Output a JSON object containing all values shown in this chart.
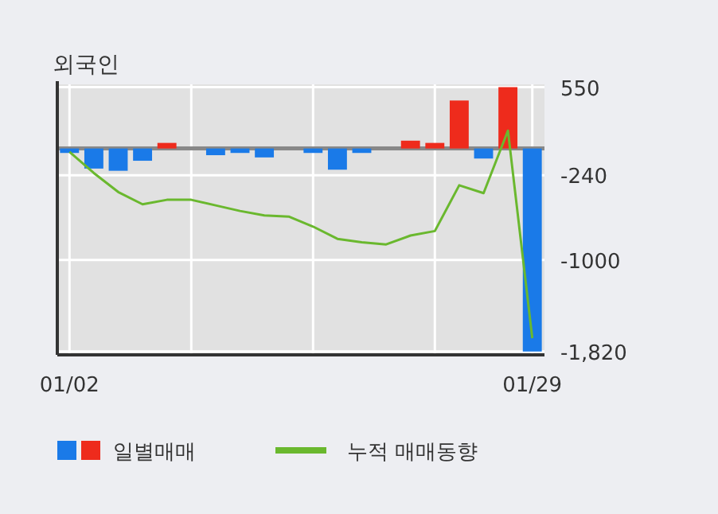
{
  "chart_data": {
    "type": "bar",
    "title": "외국인",
    "categories": [
      "01/02",
      null,
      null,
      null,
      null,
      null,
      null,
      null,
      null,
      null,
      null,
      null,
      null,
      null,
      null,
      null,
      null,
      null,
      null,
      "01/29"
    ],
    "series": [
      {
        "name": "일별매매",
        "colors": [
          "#1a7ae8",
          "#1a7ae8",
          "#1a7ae8",
          "#1a7ae8",
          "#ee2b1c",
          "#1a7ae8",
          "#1a7ae8",
          "#1a7ae8",
          "#1a7ae8",
          "#1a7ae8",
          "#1a7ae8",
          "#1a7ae8",
          "#1a7ae8",
          "#1a7ae8",
          "#ee2b1c",
          "#ee2b1c",
          "#ee2b1c",
          "#1a7ae8",
          "#ee2b1c",
          "#1a7ae8"
        ],
        "values": [
          -40,
          -180,
          -200,
          -110,
          50,
          0,
          -60,
          -40,
          -80,
          0,
          -40,
          -190,
          -40,
          0,
          70,
          50,
          430,
          -90,
          550,
          -1820
        ]
      },
      {
        "name": "누적 매매동향",
        "type": "line",
        "color": "#6ab82e",
        "values": [
          -30,
          -220,
          -390,
          -500,
          -460,
          -460,
          -510,
          -560,
          -600,
          -610,
          -700,
          -810,
          -840,
          -860,
          -780,
          -740,
          -330,
          -400,
          160,
          -1700
        ]
      }
    ],
    "ylim": [
      -1850,
      575
    ],
    "yticks": [
      550,
      -240,
      -1000,
      {
        "value": -1820,
        "label": "-1,820"
      }
    ],
    "grid": true,
    "legend": "bottom"
  }
}
